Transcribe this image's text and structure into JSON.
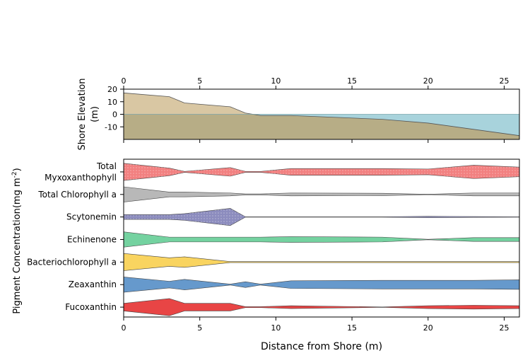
{
  "chart_data": [
    {
      "type": "area",
      "ylabel_lines": [
        "Shore Elevation",
        "(m)"
      ],
      "xlim": [
        0,
        26
      ],
      "ylim": [
        -20,
        20
      ],
      "x_ticks": [
        0,
        5,
        10,
        15,
        20,
        25
      ],
      "y_ticks": [
        -10,
        0,
        10,
        20
      ],
      "y_tick_labels": [
        "-10",
        "0",
        "10",
        "20"
      ],
      "water_level": 0,
      "colors": {
        "land": "#d9c7a3",
        "water": "#a8d3dc",
        "overlap": "#b7ad86"
      },
      "x": [
        0,
        3,
        4,
        7,
        8,
        9,
        11,
        17,
        20,
        23,
        26
      ],
      "values": [
        17,
        14,
        9,
        6,
        1,
        -1,
        -1,
        -4,
        -7,
        -12,
        -17
      ]
    },
    {
      "type": "violin-band",
      "xlabel": "Distance from Shore (m)",
      "ylabel": "Pigment Concentration(mg m-2)",
      "xlim": [
        0,
        26
      ],
      "x_ticks": [
        0,
        5,
        10,
        15,
        20,
        25
      ],
      "x": [
        0,
        3,
        4,
        7,
        8,
        9,
        11,
        17,
        20,
        23,
        26
      ],
      "series": [
        {
          "name": "Total Myxoxanthophyll",
          "name_lines": [
            "Total",
            "Myxoxanthophyll"
          ],
          "color": "#f28080",
          "pattern": true,
          "widths": [
            0.9,
            0.4,
            0.05,
            0.45,
            0.05,
            0.05,
            0.35,
            0.35,
            0.3,
            0.7,
            0.5
          ]
        },
        {
          "name": "Total Chlorophyll a",
          "name_lines": [
            "Total Chlorophyll a"
          ],
          "color": "#b8b8b8",
          "pattern": false,
          "widths": [
            0.8,
            0.25,
            0.25,
            0.15,
            0.05,
            0.05,
            0.15,
            0.12,
            0.02,
            0.15,
            0.15
          ]
        },
        {
          "name": "Scytonemin",
          "name_lines": [
            "Scytonemin"
          ],
          "color": "#8c8cbe",
          "pattern": true,
          "widths": [
            0.25,
            0.25,
            0.35,
            0.9,
            0.02,
            0.02,
            0.02,
            0.02,
            0.07,
            0.04,
            0.02
          ]
        },
        {
          "name": "Echinenone",
          "name_lines": [
            "Echinenone"
          ],
          "color": "#74d2a0",
          "pattern": false,
          "widths": [
            0.8,
            0.25,
            0.25,
            0.25,
            0.25,
            0.25,
            0.3,
            0.25,
            0.02,
            0.2,
            0.2
          ]
        },
        {
          "name": "Bacteriochlorophyll a",
          "name_lines": [
            "Bacteriochlorophyll a"
          ],
          "color": "#f9d460",
          "pattern": false,
          "widths": [
            0.9,
            0.45,
            0.55,
            0.05,
            0.05,
            0.05,
            0.05,
            0.05,
            0.05,
            0.05,
            0.05
          ]
        },
        {
          "name": "Zeaxanthin",
          "name_lines": [
            "Zeaxanthin"
          ],
          "color": "#6699cc",
          "pattern": false,
          "widths": [
            0.8,
            0.35,
            0.55,
            0.05,
            0.3,
            0.05,
            0.4,
            0.45,
            0.45,
            0.45,
            0.5
          ]
        },
        {
          "name": "Fucoxanthin",
          "name_lines": [
            "Fucoxanthin"
          ],
          "color": "#e84545",
          "pattern": false,
          "widths": [
            0.4,
            0.9,
            0.4,
            0.4,
            0.05,
            0.05,
            0.15,
            0.02,
            0.15,
            0.2,
            0.15
          ]
        }
      ]
    }
  ]
}
